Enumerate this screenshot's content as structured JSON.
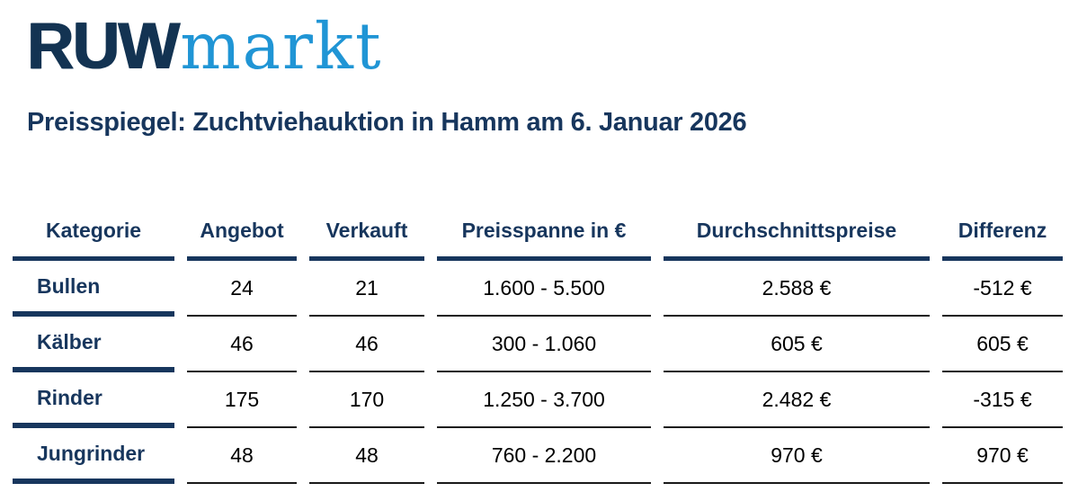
{
  "logo": {
    "part_bold": "RUW",
    "part_light": "markt"
  },
  "title": "Preisspiegel: Zuchtviehauktion in Hamm am 6. Januar 2026",
  "colors": {
    "navy": "#17365d",
    "logo_navy": "#133352",
    "logo_blue": "#2095d5",
    "data_line": "#1a1a1a"
  },
  "table": {
    "columns": [
      "Kategorie",
      "Angebot",
      "Verkauft",
      "Preisspanne in €",
      "Durchschnittspreise",
      "Differenz"
    ],
    "rows": [
      {
        "kategorie": "Bullen",
        "angebot": "24",
        "verkauft": "21",
        "preisspanne": "1.600 - 5.500",
        "durchschnittspreis": "2.588 €",
        "differenz": "-512 €"
      },
      {
        "kategorie": "Kälber",
        "angebot": "46",
        "verkauft": "46",
        "preisspanne": "300 - 1.060",
        "durchschnittspreis": "605 €",
        "differenz": "605 €"
      },
      {
        "kategorie": "Rinder",
        "angebot": "175",
        "verkauft": "170",
        "preisspanne": "1.250 - 3.700",
        "durchschnittspreis": "2.482 €",
        "differenz": "-315 €"
      },
      {
        "kategorie": "Jungrinder",
        "angebot": "48",
        "verkauft": "48",
        "preisspanne": "760 - 2.200",
        "durchschnittspreis": "970 €",
        "differenz": "970 €"
      }
    ]
  },
  "chart_data": {
    "type": "table",
    "title": "Preisspiegel: Zuchtviehauktion in Hamm am 6. Januar 2026",
    "columns": [
      "Kategorie",
      "Angebot",
      "Verkauft",
      "Preisspanne in €",
      "Durchschnittspreise",
      "Differenz"
    ],
    "rows": [
      [
        "Bullen",
        24,
        21,
        "1.600 - 5.500",
        "2.588 €",
        "-512 €"
      ],
      [
        "Kälber",
        46,
        46,
        "300 - 1.060",
        "605 €",
        "605 €"
      ],
      [
        "Rinder",
        175,
        170,
        "1.250 - 3.700",
        "2.482 €",
        "-315 €"
      ],
      [
        "Jungrinder",
        48,
        48,
        "760 - 2.200",
        "970 €",
        "970 €"
      ]
    ]
  }
}
